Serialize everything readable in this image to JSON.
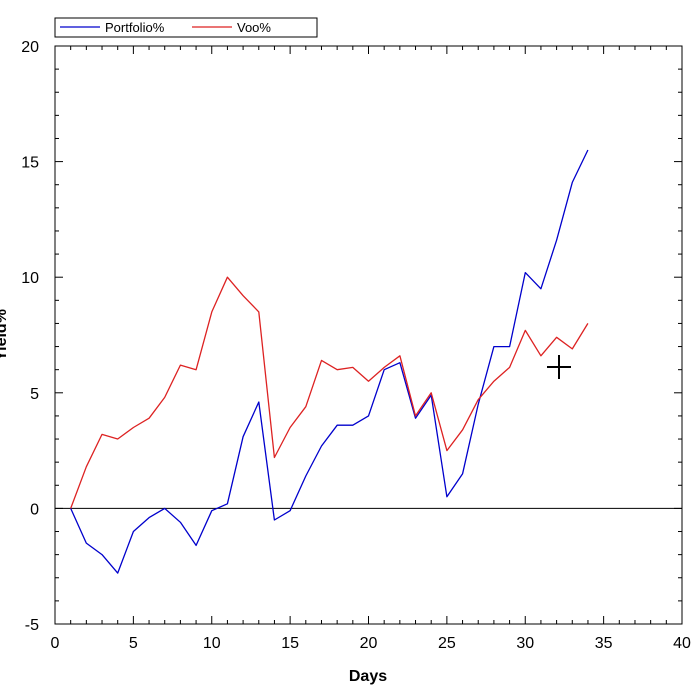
{
  "chart_data": {
    "type": "line",
    "xlabel": "Days",
    "ylabel": "Yield%",
    "xlim": [
      0,
      40
    ],
    "ylim": [
      -5,
      20
    ],
    "x_ticks": [
      0,
      5,
      10,
      15,
      20,
      25,
      30,
      35,
      40
    ],
    "y_ticks": [
      -5,
      0,
      5,
      10,
      15,
      20
    ],
    "x_minor_step": 1,
    "y_minor_step": 1,
    "grid": false,
    "zero_line": true,
    "legend": {
      "placement": "top-left, above plot",
      "entries": [
        "Portfolio%",
        "Voo%"
      ]
    },
    "x": [
      1,
      2,
      3,
      4,
      5,
      6,
      7,
      8,
      9,
      10,
      11,
      12,
      13,
      14,
      15,
      16,
      17,
      18,
      19,
      20,
      21,
      22,
      23,
      24,
      25,
      26,
      27,
      28,
      29,
      30,
      31,
      32,
      33,
      34
    ],
    "series": [
      {
        "name": "Portfolio%",
        "color": "#0000cc",
        "values": [
          0,
          -1.5,
          -2.0,
          -2.8,
          -1.0,
          -0.4,
          0.0,
          -0.6,
          -1.6,
          -0.1,
          0.2,
          3.1,
          4.6,
          -0.5,
          -0.1,
          1.4,
          2.7,
          3.6,
          3.6,
          4.0,
          6.0,
          6.3,
          3.9,
          4.9,
          0.5,
          1.5,
          4.5,
          7.0,
          7.0,
          10.2,
          9.5,
          11.6,
          14.1,
          15.5
        ]
      },
      {
        "name": "Voo%",
        "color": "#dd2222",
        "values": [
          0,
          1.8,
          3.2,
          3.0,
          3.5,
          3.9,
          4.8,
          6.2,
          6.0,
          8.5,
          10.0,
          9.2,
          8.5,
          2.2,
          3.5,
          4.4,
          6.4,
          6.0,
          6.1,
          5.5,
          6.1,
          6.6,
          4.0,
          5.0,
          2.5,
          3.4,
          4.7,
          5.5,
          6.1,
          7.7,
          6.6,
          7.4,
          6.9,
          8.0
        ]
      }
    ]
  }
}
